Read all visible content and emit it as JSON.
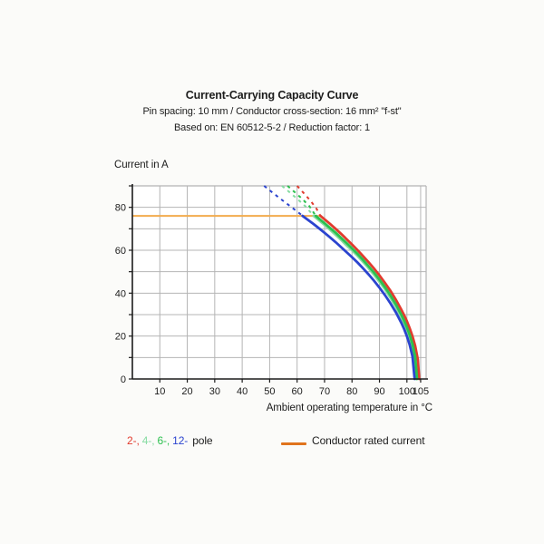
{
  "title_block": {
    "title": "Current-Carrying Capacity Curve",
    "subtitle1": "Pin spacing: 10 mm / Conductor cross-section: 16 mm² \"f-st\"",
    "subtitle2": "Based on: EN 60512-5-2 / Reduction factor: 1"
  },
  "chart_data": {
    "type": "line",
    "title": "Current-Carrying Capacity Curve",
    "xlabel": "Ambient operating temperature in °C",
    "ylabel": "Current in A",
    "xlim": [
      0,
      107
    ],
    "ylim": [
      0,
      90
    ],
    "x_ticks": [
      10,
      20,
      30,
      40,
      50,
      60,
      70,
      80,
      90,
      100,
      105
    ],
    "y_tick_labels": [
      0,
      20,
      40,
      60,
      80
    ],
    "y_minor_step": 10,
    "grid": "on",
    "rated_current_A": 76,
    "rated_line": {
      "y": 76,
      "x_start": 0,
      "x_end": 68,
      "color": "#f2ac4e"
    },
    "colors": {
      "grid": "#b4b4b4",
      "axis": "#1c1c1c",
      "plot_bg": "#ffffff"
    },
    "series": [
      {
        "name": "2-pole",
        "color": "#e23b2e",
        "dashed": [
          [
            60,
            90
          ],
          [
            62.5,
            86.5
          ],
          [
            65,
            82.9
          ],
          [
            67,
            79.5
          ],
          [
            68.5,
            76
          ]
        ],
        "solid": [
          [
            68.5,
            76
          ],
          [
            70,
            74.4
          ],
          [
            72,
            72.3
          ],
          [
            74,
            70.0
          ],
          [
            76,
            67.7
          ],
          [
            78,
            65.2
          ],
          [
            80,
            62.7
          ],
          [
            82,
            60.1
          ],
          [
            84,
            57.3
          ],
          [
            86,
            54.5
          ],
          [
            88,
            51.5
          ],
          [
            90,
            48.3
          ],
          [
            92,
            44.8
          ],
          [
            94,
            41.1
          ],
          [
            96,
            36.9
          ],
          [
            98,
            32.3
          ],
          [
            99,
            29.7
          ],
          [
            100,
            26.9
          ],
          [
            101,
            23.7
          ],
          [
            102,
            20.0
          ],
          [
            103,
            15.5
          ],
          [
            104,
            9.0
          ],
          [
            104.5,
            0
          ]
        ]
      },
      {
        "name": "4-pole",
        "color": "#86dba2",
        "dashed": [
          [
            54.5,
            90
          ],
          [
            57,
            87.3
          ],
          [
            60,
            84.0
          ],
          [
            63,
            80.5
          ],
          [
            66,
            76
          ]
        ],
        "solid": [
          [
            66,
            76
          ],
          [
            68,
            73.9
          ],
          [
            70,
            71.8
          ],
          [
            72,
            69.6
          ],
          [
            74,
            67.2
          ],
          [
            76,
            64.9
          ],
          [
            78,
            62.3
          ],
          [
            80,
            60.0
          ],
          [
            82,
            57.4
          ],
          [
            84,
            54.6
          ],
          [
            86,
            51.7
          ],
          [
            88,
            48.6
          ],
          [
            90,
            45.3
          ],
          [
            92,
            41.8
          ],
          [
            94,
            37.9
          ],
          [
            96,
            33.6
          ],
          [
            98,
            28.6
          ],
          [
            99,
            25.8
          ],
          [
            100,
            22.6
          ],
          [
            101,
            18.9
          ],
          [
            102,
            14.2
          ],
          [
            103,
            6.8
          ],
          [
            103.3,
            0
          ]
        ]
      },
      {
        "name": "6-pole",
        "color": "#2dc04f",
        "dashed": [
          [
            56.5,
            90
          ],
          [
            59,
            87.2
          ],
          [
            62,
            83.8
          ],
          [
            64.5,
            80.5
          ],
          [
            66.8,
            76
          ]
        ],
        "solid": [
          [
            66.8,
            76
          ],
          [
            68,
            74.7
          ],
          [
            70,
            72.6
          ],
          [
            72,
            70.4
          ],
          [
            74,
            68.2
          ],
          [
            76,
            65.8
          ],
          [
            78,
            63.4
          ],
          [
            80,
            60.9
          ],
          [
            82,
            58.3
          ],
          [
            84,
            55.5
          ],
          [
            86,
            52.6
          ],
          [
            88,
            49.6
          ],
          [
            90,
            46.3
          ],
          [
            92,
            42.8
          ],
          [
            94,
            39.0
          ],
          [
            96,
            34.7
          ],
          [
            98,
            29.9
          ],
          [
            99,
            27.1
          ],
          [
            100,
            24.1
          ],
          [
            101,
            20.6
          ],
          [
            102,
            16.3
          ],
          [
            103,
            10.5
          ],
          [
            103.7,
            0
          ]
        ]
      },
      {
        "name": "12-pole",
        "color": "#2b44cf",
        "dashed": [
          [
            48,
            90
          ],
          [
            51,
            86.9
          ],
          [
            54,
            83.9
          ],
          [
            57,
            81.0
          ],
          [
            60,
            78.1
          ],
          [
            62,
            76
          ]
        ],
        "solid": [
          [
            62,
            76
          ],
          [
            64,
            74.1
          ],
          [
            66,
            72.2
          ],
          [
            68,
            70.2
          ],
          [
            70,
            68.1
          ],
          [
            72,
            66.0
          ],
          [
            74,
            63.8
          ],
          [
            76,
            61.5
          ],
          [
            78,
            59.1
          ],
          [
            80,
            56.8
          ],
          [
            82,
            54.3
          ],
          [
            84,
            51.6
          ],
          [
            86,
            48.8
          ],
          [
            88,
            45.8
          ],
          [
            90,
            42.6
          ],
          [
            92,
            39.1
          ],
          [
            94,
            35.3
          ],
          [
            96,
            31.0
          ],
          [
            98,
            26.1
          ],
          [
            99,
            23.2
          ],
          [
            100,
            19.9
          ],
          [
            101,
            16.0
          ],
          [
            102,
            10.6
          ],
          [
            102.8,
            0
          ]
        ]
      }
    ]
  },
  "legend": {
    "pole_items": [
      {
        "label": "2-,",
        "color": "#e23b2e"
      },
      {
        "label": "4-,",
        "color": "#86dba2"
      },
      {
        "label": "6-,",
        "color": "#2dc04f"
      },
      {
        "label": "12-",
        "color": "#2b44cf"
      }
    ],
    "pole_suffix": "pole",
    "rated": {
      "label": "Conductor rated current",
      "swatch_color": "#e0731d"
    }
  }
}
